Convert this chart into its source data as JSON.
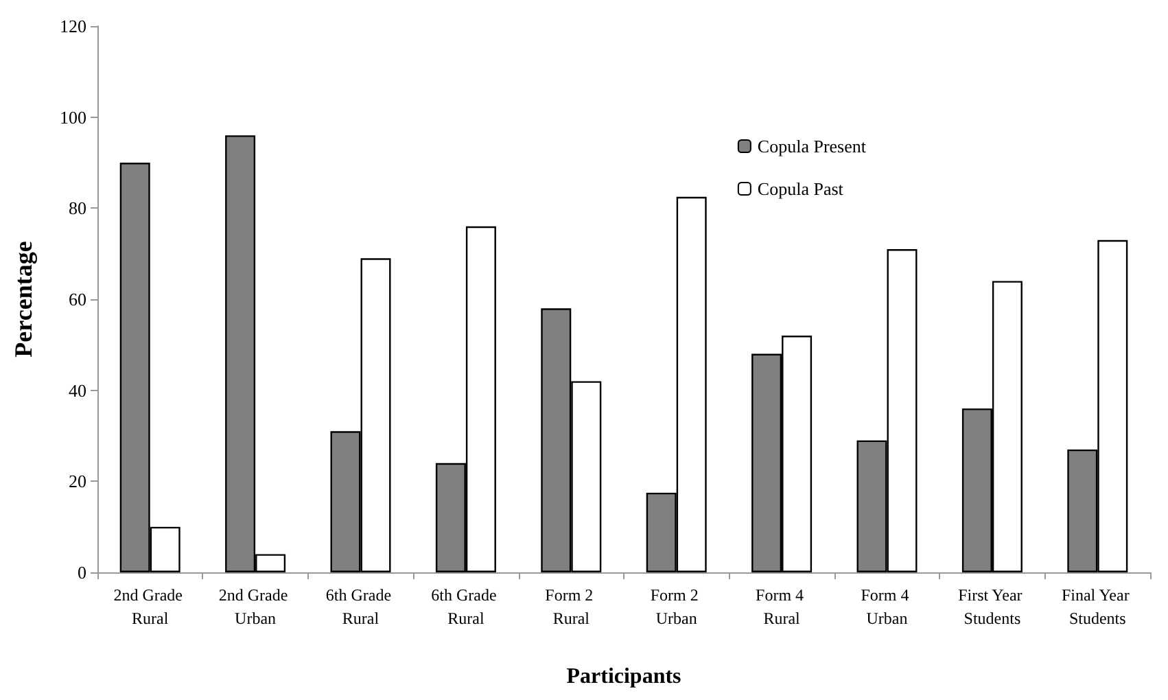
{
  "chart_data": {
    "type": "bar",
    "xlabel": "Participants",
    "ylabel": "Percentage",
    "categories": [
      "2nd Grade Rural",
      "2nd Grade Urban",
      "6th Grade Rural",
      "6th Grade Rural",
      "Form 2 Rural",
      "Form 2 Urban",
      "Form 4 Rural",
      "Form 4 Urban",
      "First Year Students",
      "Final Year Students"
    ],
    "series": [
      {
        "name": "Copula Present",
        "color": "#808080",
        "values": [
          90,
          96,
          31,
          24,
          58,
          17.5,
          48,
          29,
          36,
          27
        ]
      },
      {
        "name": "Copula Past",
        "color": "#ffffff",
        "values": [
          10,
          4,
          69,
          76,
          42,
          82.5,
          52,
          71,
          64,
          73
        ]
      }
    ],
    "ylim": [
      0,
      120
    ],
    "yticks": [
      0,
      20,
      40,
      60,
      80,
      100,
      120
    ],
    "grid": false,
    "legend": "top right"
  }
}
